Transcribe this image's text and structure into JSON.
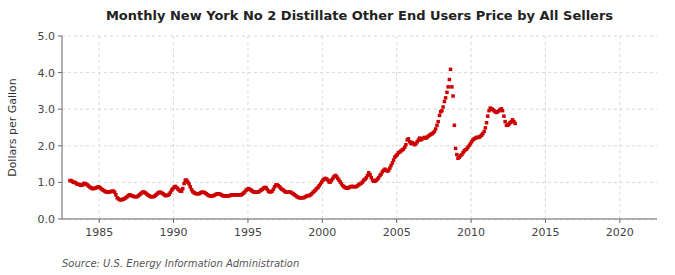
{
  "chart_data": {
    "type": "scatter",
    "title": "Monthly New York No 2 Distillate Other End Users Price by All Sellers",
    "ylabel": "Dollars per Gallon",
    "annotations": [
      "Source: U.S. Energy Information Administration"
    ],
    "marker": "square",
    "color": "#CC0000",
    "grid": true,
    "xlim": [
      1982.5,
      2022.5
    ],
    "ylim": [
      0.0,
      5.0
    ],
    "xticks": [
      1985,
      1990,
      1995,
      2000,
      2005,
      2010,
      2015,
      2020
    ],
    "yticks": [
      {
        "value": 0.0,
        "label": "0.0"
      },
      {
        "value": 1.0,
        "label": "1.0"
      },
      {
        "value": 2.0,
        "label": "2.0"
      },
      {
        "value": 3.0,
        "label": "3.0"
      },
      {
        "value": 4.0,
        "label": "4.0"
      },
      {
        "value": 5.0,
        "label": "5.0"
      }
    ],
    "x": [
      1983.04,
      1983.12,
      1983.21,
      1983.29,
      1983.38,
      1983.46,
      1983.54,
      1983.62,
      1983.71,
      1983.79,
      1983.88,
      1983.96,
      1984.04,
      1984.12,
      1984.21,
      1984.29,
      1984.38,
      1984.46,
      1984.54,
      1984.62,
      1984.71,
      1984.79,
      1984.88,
      1984.96,
      1985.04,
      1985.12,
      1985.21,
      1985.29,
      1985.38,
      1985.46,
      1985.54,
      1985.62,
      1985.71,
      1985.79,
      1985.88,
      1985.96,
      1986.04,
      1986.12,
      1986.21,
      1986.29,
      1986.38,
      1986.46,
      1986.54,
      1986.62,
      1986.71,
      1986.79,
      1986.88,
      1986.96,
      1987.04,
      1987.12,
      1987.21,
      1987.29,
      1987.38,
      1987.46,
      1987.54,
      1987.62,
      1987.71,
      1987.79,
      1987.88,
      1987.96,
      1988.04,
      1988.12,
      1988.21,
      1988.29,
      1988.38,
      1988.46,
      1988.54,
      1988.62,
      1988.71,
      1988.79,
      1988.88,
      1988.96,
      1989.04,
      1989.12,
      1989.21,
      1989.29,
      1989.38,
      1989.46,
      1989.54,
      1989.62,
      1989.71,
      1989.79,
      1989.88,
      1989.96,
      1990.04,
      1990.12,
      1990.21,
      1990.29,
      1990.38,
      1990.46,
      1990.54,
      1990.62,
      1990.71,
      1990.79,
      1990.88,
      1990.96,
      1991.04,
      1991.12,
      1991.21,
      1991.29,
      1991.38,
      1991.46,
      1991.54,
      1991.62,
      1991.71,
      1991.79,
      1991.88,
      1991.96,
      1992.04,
      1992.12,
      1992.21,
      1992.29,
      1992.38,
      1992.46,
      1992.54,
      1992.62,
      1992.71,
      1992.79,
      1992.88,
      1992.96,
      1993.04,
      1993.12,
      1993.21,
      1993.29,
      1993.38,
      1993.46,
      1993.54,
      1993.62,
      1993.71,
      1993.79,
      1993.88,
      1993.96,
      1994.04,
      1994.12,
      1994.21,
      1994.29,
      1994.38,
      1994.46,
      1994.54,
      1994.62,
      1994.71,
      1994.79,
      1994.88,
      1994.96,
      1995.04,
      1995.12,
      1995.21,
      1995.29,
      1995.38,
      1995.46,
      1995.54,
      1995.62,
      1995.71,
      1995.79,
      1995.88,
      1995.96,
      1996.04,
      1996.12,
      1996.21,
      1996.29,
      1996.38,
      1996.46,
      1996.54,
      1996.62,
      1996.71,
      1996.79,
      1996.88,
      1996.96,
      1997.04,
      1997.12,
      1997.21,
      1997.29,
      1997.38,
      1997.46,
      1997.54,
      1997.62,
      1997.71,
      1997.79,
      1997.88,
      1997.96,
      1998.04,
      1998.12,
      1998.21,
      1998.29,
      1998.38,
      1998.46,
      1998.54,
      1998.62,
      1998.71,
      1998.79,
      1998.88,
      1998.96,
      1999.04,
      1999.12,
      1999.21,
      1999.29,
      1999.38,
      1999.46,
      1999.54,
      1999.62,
      1999.71,
      1999.79,
      1999.88,
      1999.96,
      2000.04,
      2000.12,
      2000.21,
      2000.29,
      2000.38,
      2000.46,
      2000.54,
      2000.62,
      2000.71,
      2000.79,
      2000.88,
      2000.96,
      2001.04,
      2001.12,
      2001.21,
      2001.29,
      2001.38,
      2001.46,
      2001.54,
      2001.62,
      2001.71,
      2001.79,
      2001.88,
      2001.96,
      2002.04,
      2002.12,
      2002.21,
      2002.29,
      2002.38,
      2002.46,
      2002.54,
      2002.62,
      2002.71,
      2002.79,
      2002.88,
      2002.96,
      2003.04,
      2003.12,
      2003.21,
      2003.29,
      2003.38,
      2003.46,
      2003.54,
      2003.62,
      2003.71,
      2003.79,
      2003.88,
      2003.96,
      2004.04,
      2004.12,
      2004.21,
      2004.29,
      2004.38,
      2004.46,
      2004.54,
      2004.62,
      2004.71,
      2004.79,
      2004.88,
      2004.96,
      2005.04,
      2005.12,
      2005.21,
      2005.29,
      2005.38,
      2005.46,
      2005.54,
      2005.62,
      2005.71,
      2005.79,
      2005.88,
      2005.96,
      2006.04,
      2006.12,
      2006.21,
      2006.29,
      2006.38,
      2006.46,
      2006.54,
      2006.62,
      2006.71,
      2006.79,
      2006.88,
      2006.96,
      2007.04,
      2007.12,
      2007.21,
      2007.29,
      2007.38,
      2007.46,
      2007.54,
      2007.62,
      2007.71,
      2007.79,
      2007.88,
      2007.96,
      2008.04,
      2008.12,
      2008.21,
      2008.29,
      2008.38,
      2008.46,
      2008.54,
      2008.62,
      2008.71,
      2008.79,
      2008.88,
      2008.96,
      2009.04,
      2009.12,
      2009.21,
      2009.29,
      2009.38,
      2009.46,
      2009.54,
      2009.62,
      2009.71,
      2009.79,
      2009.88,
      2009.96,
      2010.04,
      2010.12,
      2010.21,
      2010.29,
      2010.38,
      2010.46,
      2010.54,
      2010.62,
      2010.71,
      2010.79,
      2010.88,
      2010.96,
      2011.04,
      2011.12,
      2011.21,
      2011.29,
      2011.38,
      2011.46,
      2011.54,
      2011.62,
      2011.71,
      2011.79,
      2011.88,
      2011.96,
      2012.04,
      2012.12,
      2012.21,
      2012.29,
      2012.38,
      2012.46,
      2012.54,
      2012.62,
      2012.71,
      2012.79,
      2012.88,
      2012.96
    ],
    "values": [
      1.05,
      1.05,
      1.02,
      1.0,
      1.0,
      0.97,
      0.95,
      0.95,
      0.93,
      0.92,
      0.93,
      0.97,
      0.97,
      0.95,
      0.93,
      0.9,
      0.87,
      0.85,
      0.83,
      0.83,
      0.84,
      0.85,
      0.87,
      0.88,
      0.86,
      0.83,
      0.8,
      0.78,
      0.76,
      0.74,
      0.73,
      0.74,
      0.74,
      0.75,
      0.76,
      0.76,
      0.73,
      0.66,
      0.58,
      0.55,
      0.53,
      0.52,
      0.53,
      0.54,
      0.56,
      0.58,
      0.61,
      0.64,
      0.66,
      0.65,
      0.63,
      0.62,
      0.61,
      0.61,
      0.61,
      0.63,
      0.66,
      0.69,
      0.72,
      0.74,
      0.73,
      0.71,
      0.68,
      0.65,
      0.63,
      0.61,
      0.61,
      0.61,
      0.62,
      0.65,
      0.68,
      0.71,
      0.73,
      0.73,
      0.71,
      0.69,
      0.66,
      0.64,
      0.64,
      0.65,
      0.68,
      0.73,
      0.79,
      0.83,
      0.87,
      0.89,
      0.86,
      0.82,
      0.79,
      0.76,
      0.76,
      0.83,
      0.97,
      1.06,
      1.06,
      1.01,
      0.96,
      0.88,
      0.8,
      0.75,
      0.72,
      0.7,
      0.69,
      0.69,
      0.69,
      0.71,
      0.73,
      0.73,
      0.73,
      0.71,
      0.69,
      0.66,
      0.64,
      0.63,
      0.63,
      0.63,
      0.64,
      0.66,
      0.68,
      0.69,
      0.69,
      0.68,
      0.66,
      0.64,
      0.63,
      0.63,
      0.63,
      0.63,
      0.63,
      0.64,
      0.66,
      0.66,
      0.66,
      0.66,
      0.66,
      0.66,
      0.66,
      0.66,
      0.66,
      0.68,
      0.71,
      0.74,
      0.79,
      0.81,
      0.83,
      0.81,
      0.79,
      0.76,
      0.74,
      0.73,
      0.73,
      0.73,
      0.74,
      0.76,
      0.79,
      0.81,
      0.84,
      0.86,
      0.86,
      0.81,
      0.76,
      0.74,
      0.74,
      0.76,
      0.81,
      0.88,
      0.93,
      0.93,
      0.91,
      0.88,
      0.84,
      0.81,
      0.79,
      0.76,
      0.74,
      0.73,
      0.73,
      0.74,
      0.73,
      0.71,
      0.69,
      0.66,
      0.64,
      0.61,
      0.59,
      0.58,
      0.58,
      0.58,
      0.58,
      0.59,
      0.61,
      0.63,
      0.64,
      0.64,
      0.66,
      0.69,
      0.73,
      0.76,
      0.79,
      0.83,
      0.86,
      0.91,
      0.96,
      1.01,
      1.06,
      1.09,
      1.11,
      1.09,
      1.06,
      1.01,
      1.01,
      1.06,
      1.11,
      1.16,
      1.19,
      1.16,
      1.11,
      1.06,
      1.01,
      0.96,
      0.91,
      0.88,
      0.86,
      0.84,
      0.84,
      0.86,
      0.88,
      0.89,
      0.89,
      0.88,
      0.88,
      0.89,
      0.91,
      0.94,
      0.96,
      0.98,
      1.01,
      1.06,
      1.09,
      1.13,
      1.19,
      1.26,
      1.21,
      1.13,
      1.06,
      1.03,
      1.03,
      1.06,
      1.09,
      1.13,
      1.19,
      1.23,
      1.29,
      1.33,
      1.36,
      1.33,
      1.31,
      1.33,
      1.39,
      1.46,
      1.53,
      1.61,
      1.69,
      1.73,
      1.76,
      1.81,
      1.83,
      1.86,
      1.89,
      1.91,
      1.96,
      2.03,
      2.16,
      2.19,
      2.11,
      2.06,
      2.09,
      2.06,
      2.03,
      2.06,
      2.11,
      2.16,
      2.21,
      2.16,
      2.19,
      2.21,
      2.23,
      2.21,
      2.23,
      2.26,
      2.29,
      2.31,
      2.33,
      2.36,
      2.39,
      2.46,
      2.56,
      2.66,
      2.83,
      2.93,
      2.96,
      3.06,
      3.21,
      3.31,
      3.46,
      3.61,
      3.81,
      4.09,
      3.61,
      3.36,
      2.56,
      1.93,
      1.76,
      1.66,
      1.69,
      1.73,
      1.76,
      1.81,
      1.86,
      1.89,
      1.91,
      1.96,
      2.01,
      2.06,
      2.11,
      2.16,
      2.19,
      2.21,
      2.23,
      2.23,
      2.23,
      2.26,
      2.29,
      2.33,
      2.39,
      2.49,
      2.63,
      2.81,
      2.96,
      3.03,
      3.01,
      2.99,
      2.96,
      2.93,
      2.91,
      2.93,
      2.96,
      2.99,
      3.01,
      2.96,
      2.81,
      2.66,
      2.56,
      2.56,
      2.59,
      2.63,
      2.66,
      2.71,
      2.66,
      2.61
    ]
  }
}
